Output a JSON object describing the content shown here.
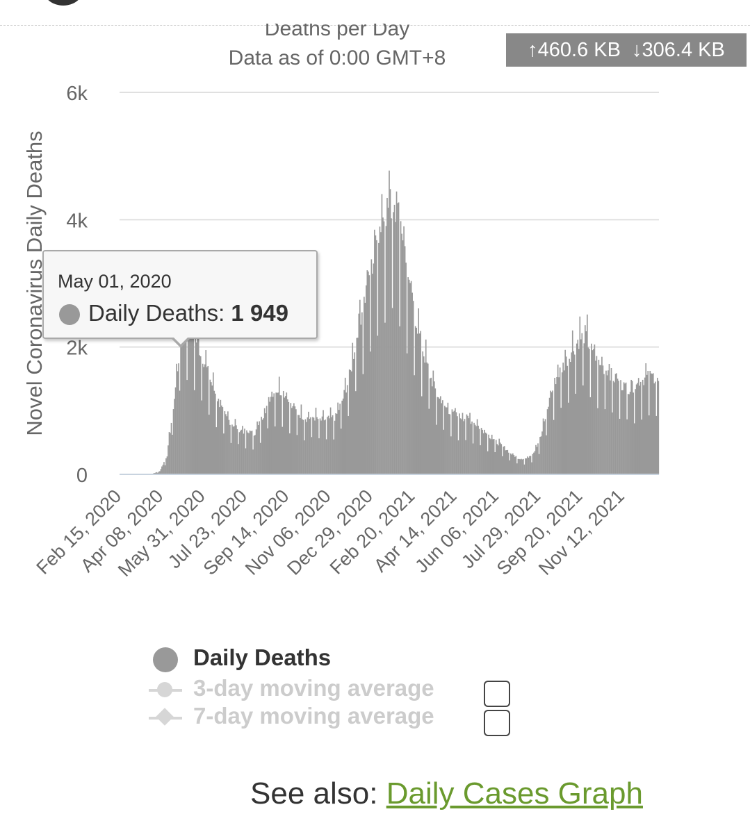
{
  "header": {
    "title": "Deaths per Day",
    "subtitle": "Data as of 0:00 GMT+8"
  },
  "traffic": {
    "upload": "↑460.6 KB",
    "download": "↓306.4 KB"
  },
  "tooltip": {
    "date": "May 01, 2020",
    "series_label": "Daily Deaths:",
    "value": "1 949"
  },
  "legend": {
    "items": [
      {
        "label": "Daily Deaths",
        "active": true
      },
      {
        "label": "3-day moving average",
        "active": false
      },
      {
        "label": "7-day moving average",
        "active": false
      }
    ]
  },
  "footer": {
    "prefix": "See also:",
    "link_label": "Daily Cases Graph"
  },
  "colors": {
    "bar": "#999999",
    "grid": "#e0e0e0",
    "link": "#6a9a2e",
    "traffic_bg": "#888888"
  },
  "chart_data": {
    "type": "bar",
    "title": "Deaths per Day",
    "subtitle": "Data as of 0:00 GMT+8",
    "ylabel": "Novel Coronavirus Daily Deaths",
    "xlabel": "",
    "ylim": [
      0,
      6000
    ],
    "yticks": [
      0,
      2000,
      4000,
      6000
    ],
    "ytick_labels": [
      "0",
      "2k",
      "4k",
      "6k"
    ],
    "xtick_labels": [
      "Feb 15, 2020",
      "Apr 08, 2020",
      "May 31, 2020",
      "Jul 23, 2020",
      "Sep 14, 2020",
      "Nov 06, 2020",
      "Dec 29, 2020",
      "Feb 20, 2021",
      "Apr 14, 2021",
      "Jun 06, 2021",
      "Jul 29, 2021",
      "Sep 20, 2021",
      "Nov 12, 2021"
    ],
    "x_start": "2020-02-15",
    "x_step_days": 7,
    "grid": true,
    "legend_position": "bottom",
    "series": [
      {
        "name": "Daily Deaths",
        "values": [
          5,
          10,
          50,
          300,
          1200,
          2300,
          2500,
          2100,
          1800,
          1450,
          1150,
          900,
          780,
          700,
          650,
          650,
          900,
          1200,
          1330,
          1280,
          1050,
          950,
          880,
          900,
          850,
          870,
          900,
          1200,
          1600,
          2300,
          2800,
          3300,
          3900,
          4200,
          4300,
          3900,
          2900,
          2400,
          1900,
          1500,
          1200,
          1050,
          950,
          900,
          880,
          800,
          700,
          600,
          500,
          420,
          320,
          250,
          250,
          350,
          600,
          1100,
          1500,
          1700,
          1900,
          2100,
          2200,
          1900,
          1700,
          1650,
          1500,
          1400,
          1350,
          1400,
          1500,
          1550,
          1450
        ]
      }
    ]
  }
}
